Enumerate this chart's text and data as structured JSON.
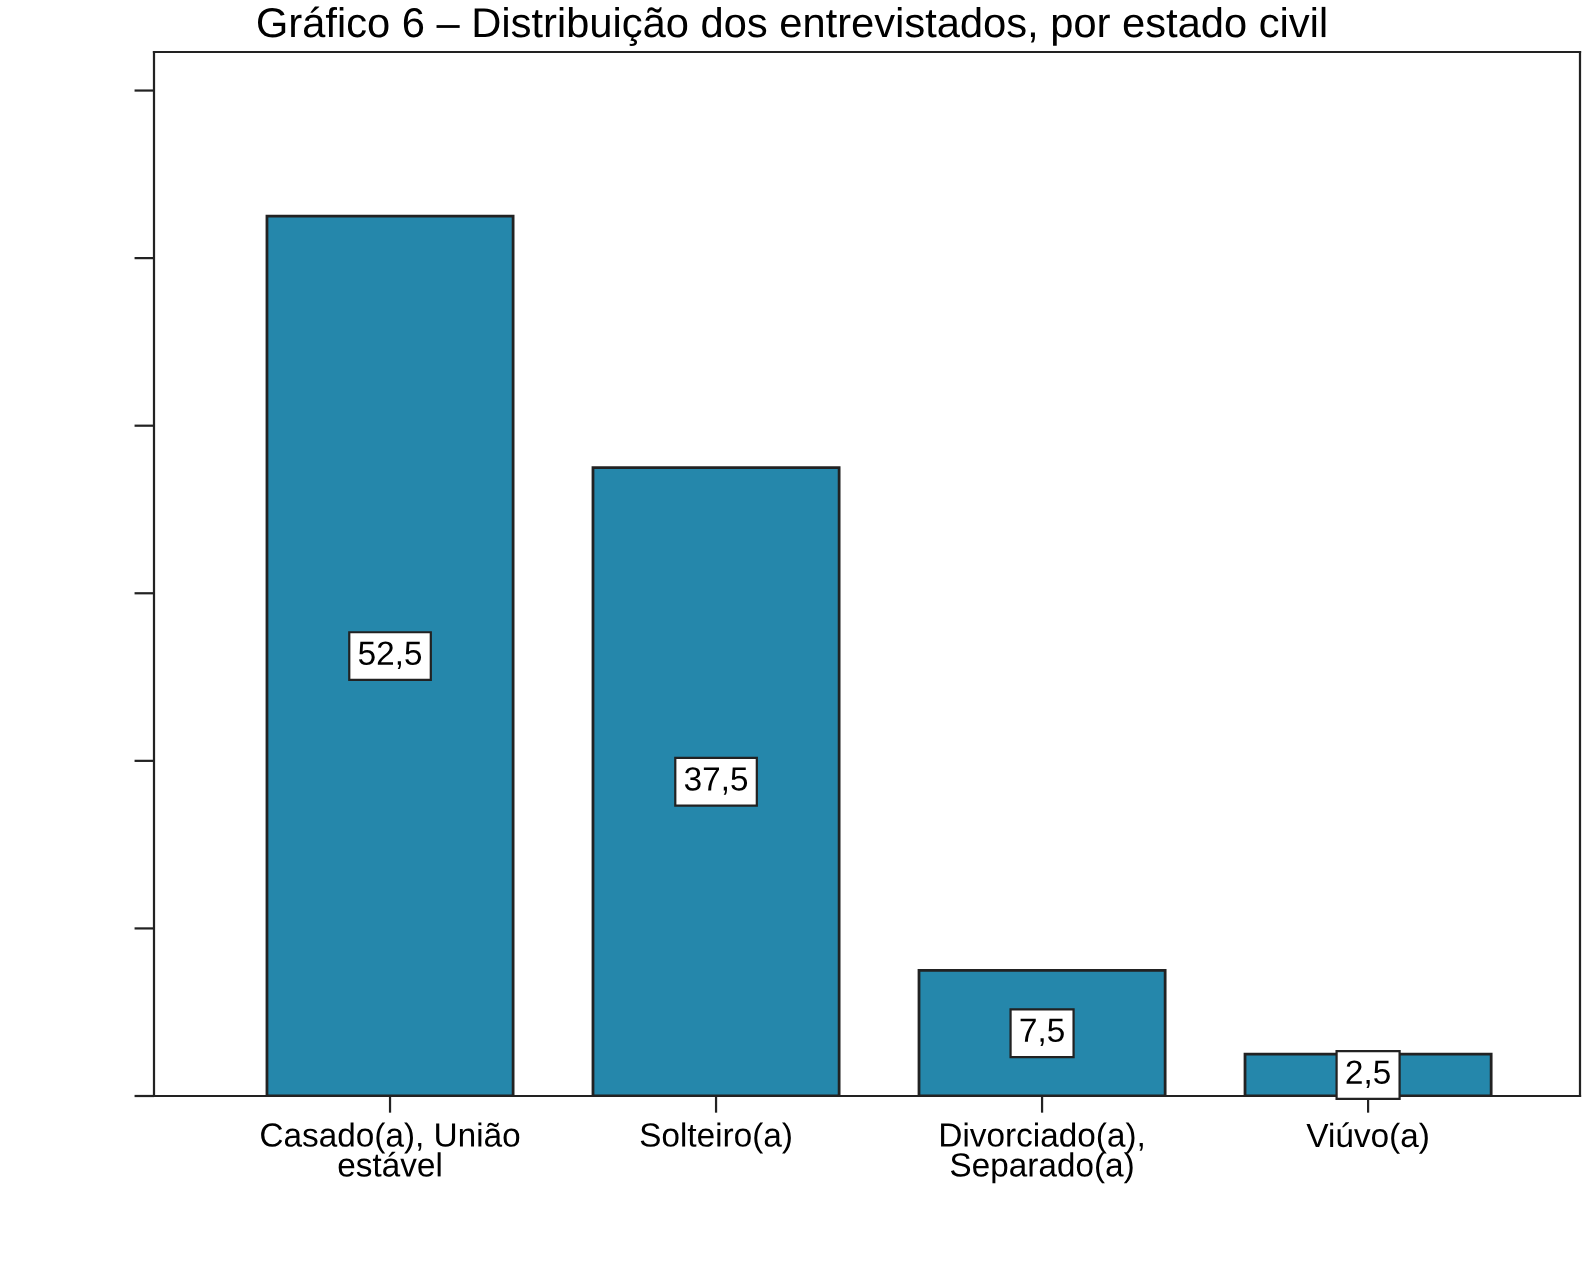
{
  "chart_data": {
    "type": "bar",
    "title": "Gráfico 6 – Distribuição dos entrevistados, por estado civil",
    "categories": [
      "Casado(a), União\nestável",
      "Solteiro(a)",
      "Divorciado(a),\nSeparado(a)",
      "Viúvo(a)"
    ],
    "values": [
      52.5,
      37.5,
      7.5,
      2.5
    ],
    "color": "#2587ab",
    "value_labels": [
      "52,5",
      "37,5",
      "7,5",
      "2,5"
    ],
    "ylim": [
      0,
      62.3
    ],
    "yticks": [
      {
        "value": 0,
        "label": null
      },
      {
        "value": 10,
        "label": null
      },
      {
        "value": 20,
        "label": null
      },
      {
        "value": 30,
        "label": null
      },
      {
        "value": 40,
        "label": null
      },
      {
        "value": 50,
        "label": null
      },
      {
        "value": 60,
        "label": null
      }
    ],
    "grid": false,
    "legend": false
  }
}
